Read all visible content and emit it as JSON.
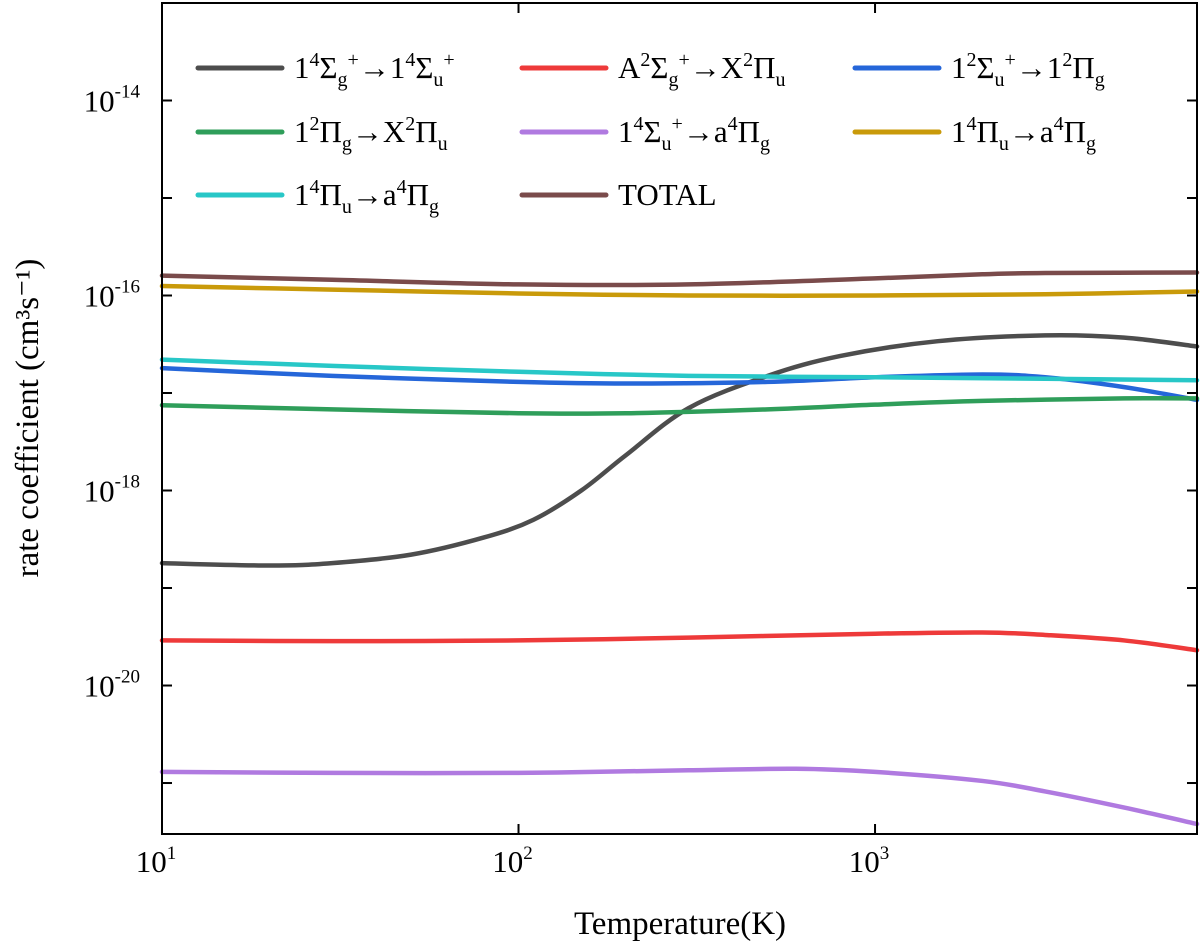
{
  "chart_data": {
    "type": "line",
    "x_scale": "log",
    "y_scale": "log",
    "xlabel": "Temperature(K)",
    "ylabel": "rate coefficient (cm³s⁻¹)",
    "xlim": [
      10,
      8000
    ],
    "ylim": [
      3e-22,
      1e-13
    ],
    "x_ticks": [
      {
        "value": 10,
        "base": "10",
        "exp": "1"
      },
      {
        "value": 100,
        "base": "10",
        "exp": "2"
      },
      {
        "value": 1000,
        "base": "10",
        "exp": "3"
      }
    ],
    "y_ticks": [
      {
        "value": 1e-20,
        "base": "10",
        "exp": "-20"
      },
      {
        "value": 1e-18,
        "base": "10",
        "exp": "-18"
      },
      {
        "value": 1e-16,
        "base": "10",
        "exp": "-16"
      },
      {
        "value": 1e-14,
        "base": "10",
        "exp": "-14"
      }
    ],
    "legend_position": "top",
    "series": [
      {
        "name": "1⁴Σg⁺→1⁴Σu⁺",
        "label_parts": [
          [
            "1",
            ""
          ],
          [
            "4",
            "sup"
          ],
          [
            "Σ",
            ""
          ],
          [
            "g",
            "sub"
          ],
          [
            "+",
            "sup"
          ],
          [
            "→1",
            ""
          ],
          [
            "4",
            "sup"
          ],
          [
            "Σ",
            ""
          ],
          [
            "u",
            "sub"
          ],
          [
            "+",
            "sup"
          ]
        ],
        "color": "#4d4d4d",
        "x": [
          10,
          20,
          30,
          50,
          80,
          110,
          150,
          200,
          300,
          500,
          800,
          1500,
          3000,
          5000,
          8000
        ],
        "y": [
          1.8e-19,
          1.7e-19,
          1.8e-19,
          2.2e-19,
          3.3e-19,
          5e-19,
          1e-18,
          2.3e-18,
          7e-18,
          1.5e-17,
          2.4e-17,
          3.4e-17,
          3.9e-17,
          3.7e-17,
          3e-17
        ]
      },
      {
        "name": "A²Σg⁺→X²Πu",
        "label_parts": [
          [
            "A",
            ""
          ],
          [
            "2",
            "sup"
          ],
          [
            "Σ",
            ""
          ],
          [
            "g",
            "sub"
          ],
          [
            "+",
            "sup"
          ],
          [
            "→X",
            ""
          ],
          [
            "2",
            "sup"
          ],
          [
            "Π",
            ""
          ],
          [
            "u",
            "sub"
          ]
        ],
        "color": "#ee3a3a",
        "x": [
          10,
          30,
          100,
          300,
          1000,
          2000,
          3000,
          5000,
          8000
        ],
        "y": [
          2.9e-20,
          2.85e-20,
          2.9e-20,
          3.1e-20,
          3.4e-20,
          3.5e-20,
          3.3e-20,
          2.9e-20,
          2.3e-20
        ]
      },
      {
        "name": "1²Σu⁺→1²Πg",
        "label_parts": [
          [
            "1",
            ""
          ],
          [
            "2",
            "sup"
          ],
          [
            "Σ",
            ""
          ],
          [
            "u",
            "sub"
          ],
          [
            "+",
            "sup"
          ],
          [
            "→1",
            ""
          ],
          [
            "2",
            "sup"
          ],
          [
            "Π",
            ""
          ],
          [
            "g",
            "sub"
          ]
        ],
        "color": "#2566d9",
        "x": [
          10,
          30,
          100,
          200,
          500,
          1000,
          2000,
          3000,
          5000,
          8000
        ],
        "y": [
          1.8e-17,
          1.5e-17,
          1.3e-17,
          1.25e-17,
          1.3e-17,
          1.45e-17,
          1.55e-17,
          1.45e-17,
          1.15e-17,
          8.5e-18
        ]
      },
      {
        "name": "1²Πg→X²Πu",
        "label_parts": [
          [
            "1",
            ""
          ],
          [
            "2",
            "sup"
          ],
          [
            "Π",
            ""
          ],
          [
            "g",
            "sub"
          ],
          [
            "→X",
            ""
          ],
          [
            "2",
            "sup"
          ],
          [
            "Π",
            ""
          ],
          [
            "u",
            "sub"
          ]
        ],
        "color": "#2f9e5a",
        "x": [
          10,
          30,
          100,
          200,
          500,
          1000,
          2000,
          5000,
          8000
        ],
        "y": [
          7.5e-18,
          6.8e-18,
          6.2e-18,
          6.2e-18,
          6.8e-18,
          7.6e-18,
          8.3e-18,
          8.8e-18,
          8.8e-18
        ]
      },
      {
        "name": "1⁴Σu⁺→a⁴Πg",
        "label_parts": [
          [
            "1",
            ""
          ],
          [
            "4",
            "sup"
          ],
          [
            "Σ",
            ""
          ],
          [
            "u",
            "sub"
          ],
          [
            "+",
            "sup"
          ],
          [
            "→a",
            ""
          ],
          [
            "4",
            "sup"
          ],
          [
            "Π",
            ""
          ],
          [
            "g",
            "sub"
          ]
        ],
        "color": "#b07ae0",
        "x": [
          10,
          30,
          100,
          300,
          600,
          1000,
          2000,
          3000,
          5000,
          8000
        ],
        "y": [
          1.3e-21,
          1.27e-21,
          1.27e-21,
          1.35e-21,
          1.4e-21,
          1.3e-21,
          1.05e-21,
          8.2e-22,
          5.6e-22,
          3.8e-22
        ]
      },
      {
        "name": "1⁴Πu→a⁴Πg",
        "label_parts": [
          [
            "1",
            ""
          ],
          [
            "4",
            "sup"
          ],
          [
            "Π",
            ""
          ],
          [
            "u",
            "sub"
          ],
          [
            "→a",
            ""
          ],
          [
            "4",
            "sup"
          ],
          [
            "Π",
            ""
          ],
          [
            "g",
            "sub"
          ]
        ],
        "color": "#c99a0a",
        "x": [
          10,
          30,
          100,
          300,
          1000,
          3000,
          8000
        ],
        "y": [
          1.25e-16,
          1.15e-16,
          1.05e-16,
          1e-16,
          1e-16,
          1.03e-16,
          1.1e-16
        ]
      },
      {
        "name": "1⁴Πu→a⁴Πg",
        "label_parts": [
          [
            "1",
            ""
          ],
          [
            "4",
            "sup"
          ],
          [
            "Π",
            ""
          ],
          [
            "u",
            "sub"
          ],
          [
            "→a",
            ""
          ],
          [
            "4",
            "sup"
          ],
          [
            "Π",
            ""
          ],
          [
            "g",
            "sub"
          ]
        ],
        "color": "#28c7c7",
        "x": [
          10,
          30,
          100,
          300,
          1000,
          3000,
          8000
        ],
        "y": [
          2.2e-17,
          1.9e-17,
          1.65e-17,
          1.5e-17,
          1.45e-17,
          1.4e-17,
          1.35e-17
        ]
      },
      {
        "name": "TOTAL",
        "label_parts": [
          [
            "TOTAL",
            ""
          ]
        ],
        "color": "#7a4b4b",
        "x": [
          10,
          30,
          100,
          300,
          1000,
          2000,
          3000,
          8000
        ],
        "y": [
          1.6e-16,
          1.45e-16,
          1.3e-16,
          1.3e-16,
          1.5e-16,
          1.65e-16,
          1.7e-16,
          1.72e-16
        ]
      }
    ]
  }
}
